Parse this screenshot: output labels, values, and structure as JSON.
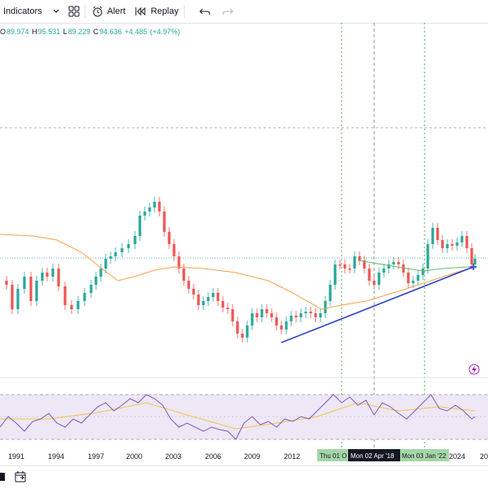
{
  "toolbar": {
    "indicators_label": "Indicators",
    "alert_label": "Alert",
    "replay_label": "Replay"
  },
  "ohlc": {
    "open_label": "O",
    "open": "89.974",
    "high_label": "H",
    "high": "95.531",
    "low_label": "L",
    "low": "89.229",
    "close_label": "C",
    "close": "94.636",
    "change": "+4.485",
    "change_pct": "(+4.97%)"
  },
  "colors": {
    "up": "#26a69a",
    "down": "#ef5350",
    "ma_orange": "#f7a04b",
    "ma_green": "#66bb6a",
    "trend": "#2942c9",
    "rsi": "#7e57c2",
    "rsi_ma": "#f5c542",
    "rsi_band": "#ede7f6",
    "marker_green": "#4caf50"
  },
  "x_axis": {
    "ticks": [
      "1991",
      "1994",
      "1997",
      "2000",
      "2003",
      "2006",
      "2009",
      "2012",
      "2024",
      "20"
    ]
  },
  "crosshair_labels": {
    "left": "Thu 01 O",
    "center": "Mon 02 Apr '18",
    "right": "Mon 03 Jan '22"
  },
  "chart_data": {
    "type": "candlestick",
    "trend_line": true,
    "rsi_panel": true,
    "moving_averages": [
      "orange long-term MA",
      "green short MA"
    ],
    "last_change": "+4.485"
  }
}
